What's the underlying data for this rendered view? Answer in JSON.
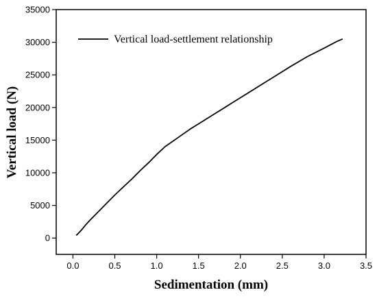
{
  "chart_data": {
    "type": "line",
    "title": "",
    "xlabel": "Sedimentation (mm)",
    "ylabel": "Vertical load (N)",
    "xlim": [
      -0.2,
      3.5
    ],
    "ylim": [
      -2500,
      35000
    ],
    "x_ticks": [
      0.0,
      0.5,
      1.0,
      1.5,
      2.0,
      2.5,
      3.0,
      3.5
    ],
    "x_tick_labels": [
      "0.0",
      "0.5",
      "1.0",
      "1.5",
      "2.0",
      "2.5",
      "3.0",
      "3.5"
    ],
    "y_ticks": [
      0,
      5000,
      10000,
      15000,
      20000,
      25000,
      30000,
      35000
    ],
    "y_tick_labels": [
      "0",
      "5000",
      "10000",
      "15000",
      "20000",
      "25000",
      "30000",
      "35000"
    ],
    "grid": false,
    "legend_position": "top-left",
    "series": [
      {
        "name": "Vertical load-settlement relationship",
        "color": "#000000",
        "x": [
          0.04,
          0.1,
          0.15,
          0.2,
          0.3,
          0.4,
          0.5,
          0.6,
          0.7,
          0.8,
          0.9,
          1.0,
          1.1,
          1.2,
          1.3,
          1.4,
          1.5,
          1.6,
          1.7,
          1.8,
          1.9,
          2.0,
          2.2,
          2.4,
          2.6,
          2.8,
          3.0,
          3.15,
          3.22
        ],
        "y": [
          400,
          1200,
          2000,
          2700,
          4000,
          5300,
          6600,
          7800,
          9000,
          10300,
          11500,
          12800,
          14000,
          14900,
          15800,
          16700,
          17500,
          18300,
          19100,
          19900,
          20700,
          21500,
          23100,
          24700,
          26300,
          27800,
          29100,
          30100,
          30500
        ]
      }
    ]
  }
}
